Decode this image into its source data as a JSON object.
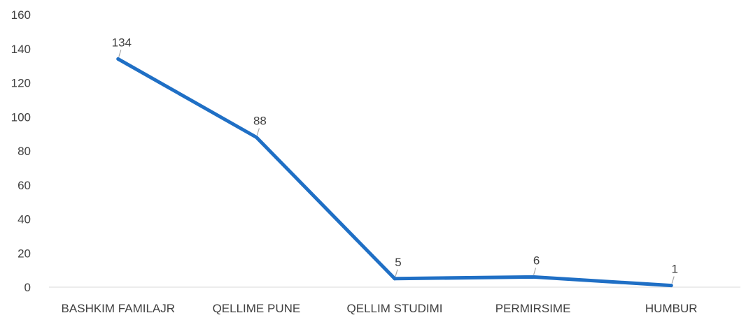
{
  "chart_data": {
    "type": "line",
    "title": "",
    "xlabel": "",
    "ylabel": "",
    "categories": [
      "BASHKIM FAMILAJR",
      "QELLIME PUNE",
      "QELLIM STUDIMI",
      "PERMIRSIME",
      "HUMBUR"
    ],
    "series": [
      {
        "values": [
          134,
          88,
          5,
          6,
          1
        ],
        "color": "#1f6fc5",
        "data_labels": [
          "134",
          "88",
          "5",
          "6",
          "1"
        ]
      }
    ],
    "ylim": [
      0,
      160
    ],
    "yticks": [
      0,
      20,
      40,
      60,
      80,
      100,
      120,
      140,
      160
    ],
    "ytick_labels": [
      "0",
      "20",
      "40",
      "60",
      "80",
      "100",
      "120",
      "140",
      "160"
    ],
    "grid": false,
    "legend": "none",
    "colors": {
      "line": "#1f6fc5",
      "axis": "#d9d9d9",
      "text": "#404040",
      "leader": "#a6a6a6"
    }
  }
}
